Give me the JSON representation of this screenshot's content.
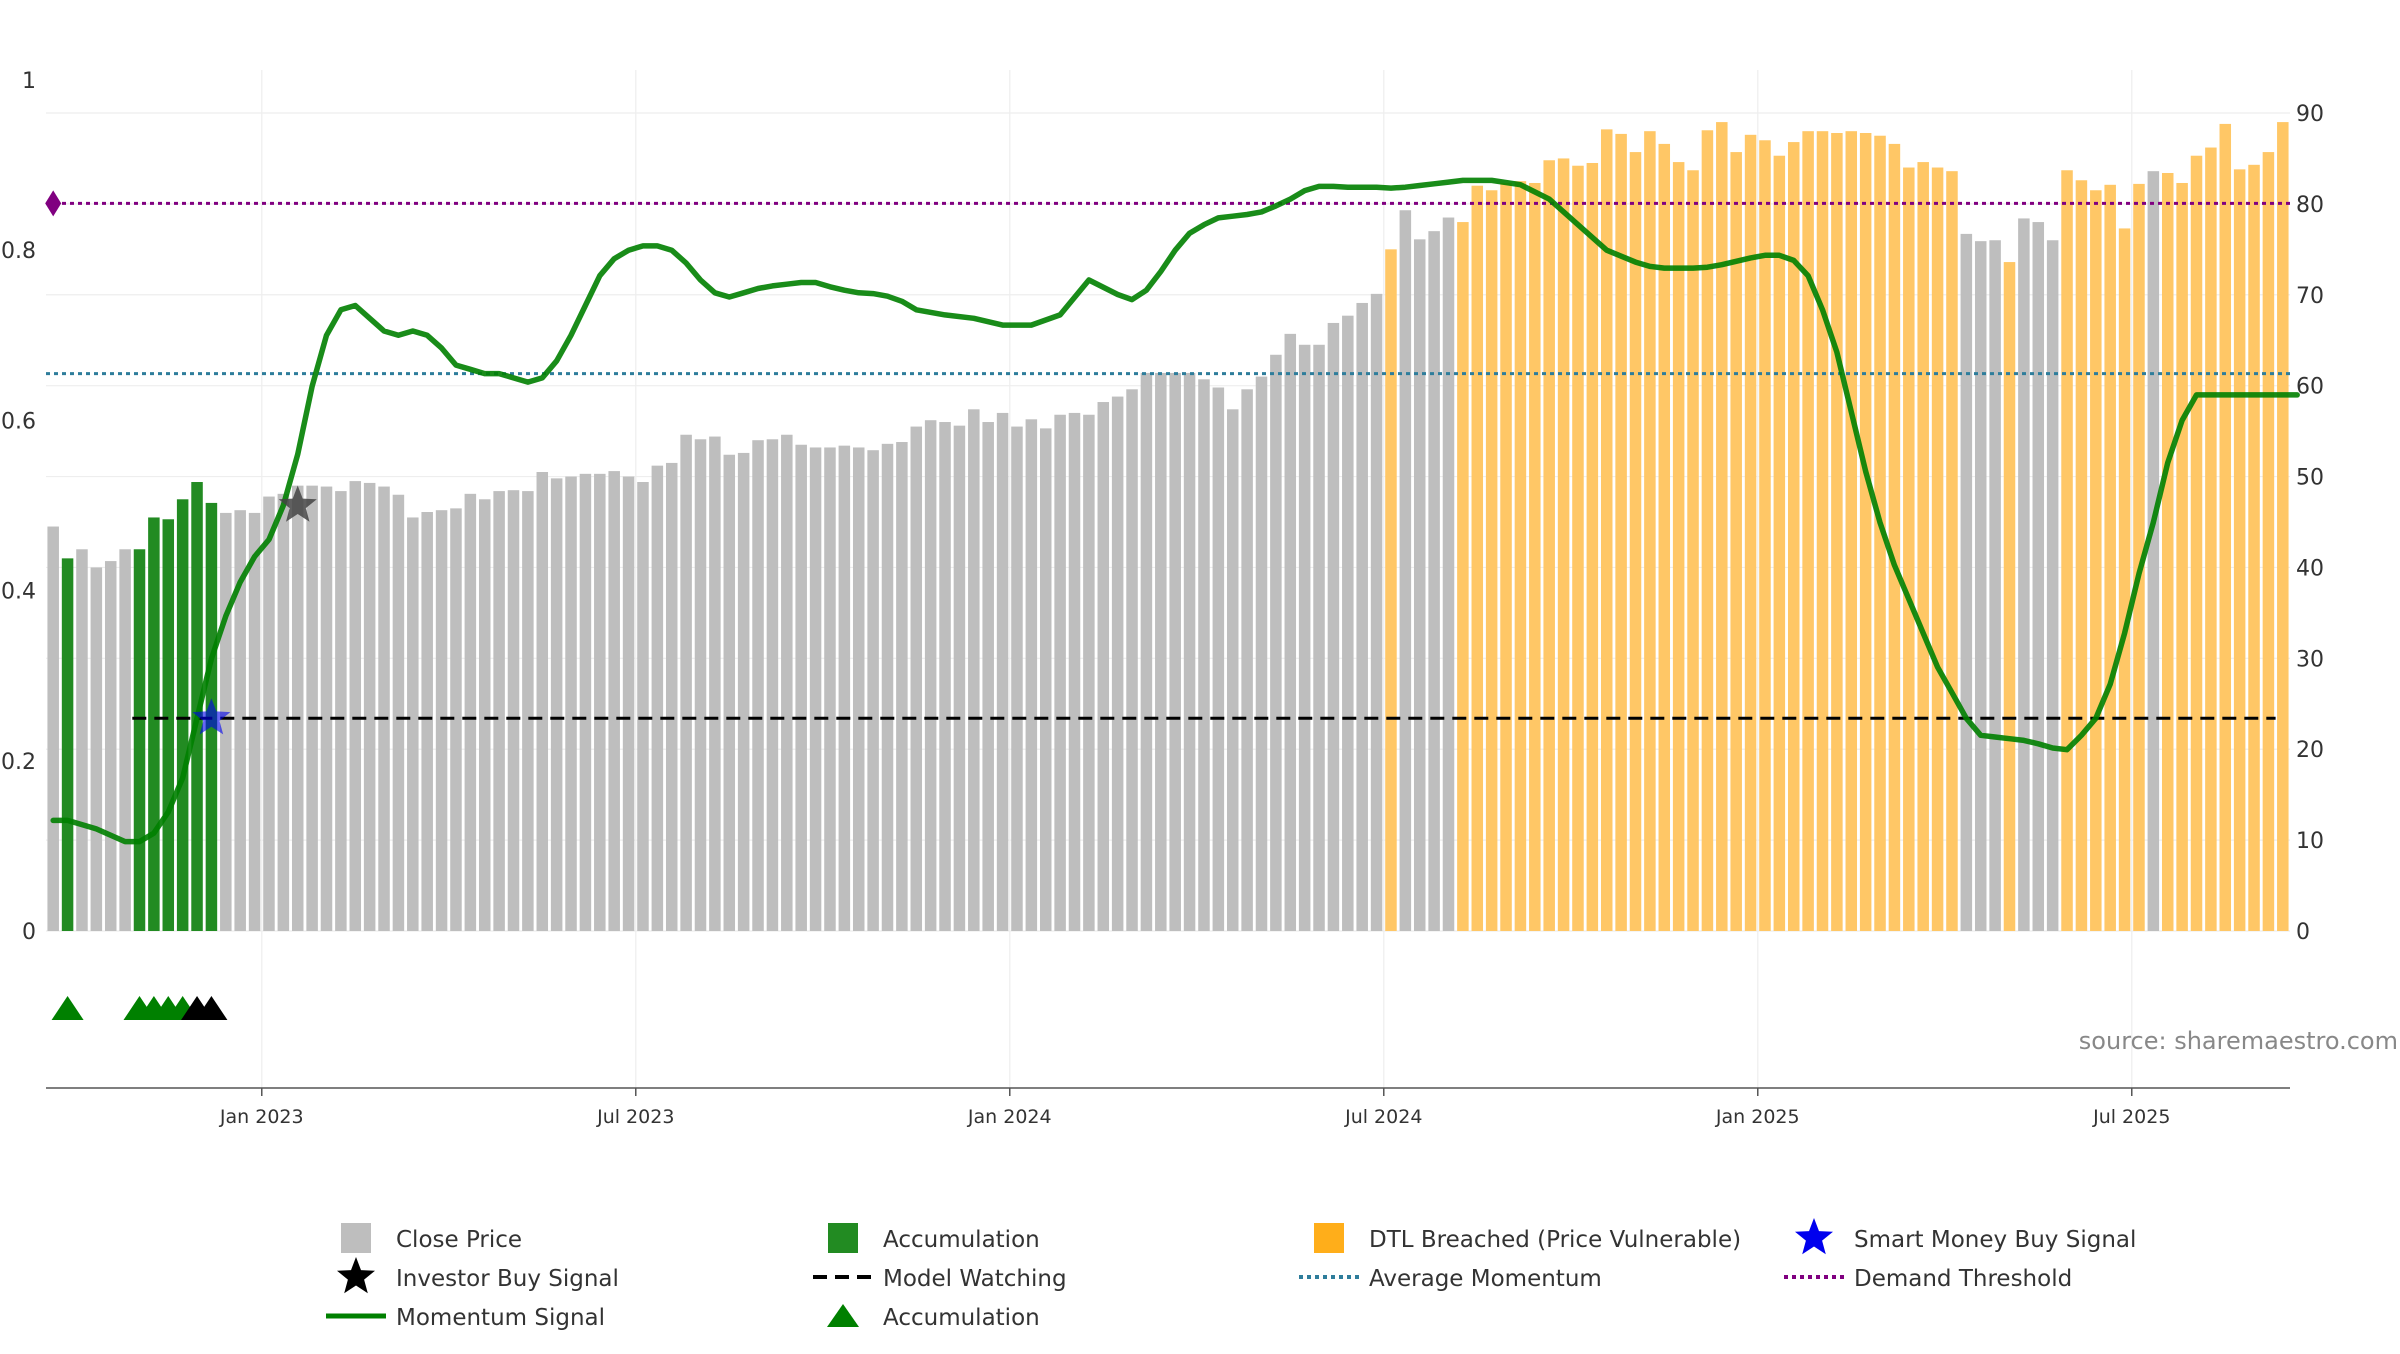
{
  "chart_data": {
    "type": "bar",
    "source": "source: sharemaestro.com",
    "ylim_left": [
      0,
      1
    ],
    "yticks_left": [
      "0",
      "0.2",
      "0.4",
      "0.6",
      "0.8",
      "1"
    ],
    "ylim_right": [
      0,
      90
    ],
    "yticks_right": [
      "0",
      "10",
      "20",
      "30",
      "40",
      "50",
      "60",
      "70",
      "80",
      "90"
    ],
    "x_range_weeks": [
      0,
      156
    ],
    "xticks": [
      {
        "label": "Jan 2023",
        "week": 15
      },
      {
        "label": "Jul 2023",
        "week": 41
      },
      {
        "label": "Jan 2024",
        "week": 67
      },
      {
        "label": "Jul 2024",
        "week": 93
      },
      {
        "label": "Jan 2025",
        "week": 119
      },
      {
        "label": "Jul 2025",
        "week": 145
      }
    ],
    "bar_series": {
      "name": "Close Price",
      "axis": "right",
      "values": [
        44.5,
        41,
        42,
        40,
        40.7,
        42,
        42,
        45.5,
        45.3,
        47.5,
        49.4,
        47.1,
        46,
        46.3,
        46,
        47.8,
        48.1,
        49,
        49,
        48.9,
        48.4,
        49.5,
        49.3,
        48.9,
        48,
        45.5,
        46.1,
        46.3,
        46.5,
        48.1,
        47.5,
        48.4,
        48.5,
        48.4,
        50.5,
        49.8,
        50,
        50.3,
        50.3,
        50.6,
        50,
        49.4,
        51.2,
        51.5,
        54.6,
        54.1,
        54.4,
        52.4,
        52.6,
        54,
        54.1,
        54.6,
        53.5,
        53.2,
        53.2,
        53.4,
        53.2,
        52.9,
        53.6,
        53.8,
        55.5,
        56.2,
        56,
        55.6,
        57.4,
        56,
        57,
        55.5,
        56.3,
        55.3,
        56.8,
        57,
        56.8,
        58.2,
        58.8,
        59.6,
        61.4,
        61.4,
        61.4,
        61.4,
        60.7,
        59.8,
        57.4,
        59.6,
        61,
        63.4,
        65.7,
        64.5,
        64.5,
        66.9,
        67.7,
        69.1,
        70.1,
        75,
        79.3,
        76.1,
        77,
        78.5,
        78,
        82,
        81.5,
        82.3,
        82.5,
        82.3,
        84.8,
        85,
        84.2,
        84.5,
        88.2,
        87.7,
        85.7,
        88,
        86.6,
        84.6,
        83.7,
        88.1,
        89,
        85.7,
        87.6,
        87,
        85.3,
        86.8,
        88,
        88,
        87.8,
        88,
        87.8,
        87.5,
        86.6,
        84,
        84.6,
        84,
        83.6,
        76.7,
        75.9,
        76,
        73.6,
        78.4,
        78,
        76,
        83.7,
        82.6,
        81.5,
        82.1,
        77.3,
        82.2,
        83.6,
        83.4,
        82.3,
        85.3,
        86.2,
        88.8,
        83.8,
        84.3,
        85.7,
        89
      ]
    },
    "bar_colors": {
      "Close Price": "#bebebe",
      "Accumulation": "#228b22",
      "DTL Breached (Price Vulnerable)": "#ffc766"
    },
    "accumulation_bar_weeks": [
      1,
      6,
      7,
      8,
      9,
      10,
      11
    ],
    "dtl_breached_weeks_ranges": [
      [
        93,
        93
      ],
      [
        98,
        132
      ],
      [
        136,
        136
      ],
      [
        140,
        145
      ],
      [
        147,
        156
      ]
    ],
    "momentum_signal": {
      "name": "Momentum Signal",
      "axis": "left",
      "color": "#008000",
      "weeks": [
        0,
        1,
        3,
        5,
        6,
        7,
        8,
        9,
        10,
        11,
        12,
        13,
        14,
        15,
        16,
        17,
        18,
        19,
        20,
        21,
        22,
        23,
        24,
        25,
        26,
        27,
        28,
        29,
        30,
        31,
        32,
        33,
        34,
        35,
        36,
        37,
        38,
        39,
        40,
        41,
        42,
        43,
        44,
        45,
        46,
        47,
        48,
        49,
        50,
        51,
        52,
        53,
        54,
        55,
        56,
        57,
        58,
        59,
        60,
        62,
        64,
        66,
        68,
        70,
        72,
        74,
        75,
        76,
        77,
        78,
        79,
        80,
        81,
        82,
        83,
        84,
        85,
        86,
        87,
        88,
        89,
        90,
        91,
        92,
        93,
        94,
        95,
        96,
        97,
        98,
        99,
        100,
        102,
        104,
        106,
        108,
        110,
        111,
        112,
        113,
        114,
        115,
        116,
        117,
        118,
        119,
        120,
        121,
        122,
        123,
        124,
        125,
        126,
        127,
        128,
        129,
        130,
        131,
        132,
        133,
        134,
        135,
        136,
        137,
        138,
        139,
        140,
        141,
        142,
        143,
        144,
        145,
        146,
        147,
        148,
        149,
        150,
        151,
        152,
        153,
        154,
        155,
        156
      ],
      "values": [
        0.13,
        0.13,
        0.12,
        0.105,
        0.105,
        0.115,
        0.14,
        0.18,
        0.25,
        0.32,
        0.37,
        0.41,
        0.44,
        0.46,
        0.5,
        0.56,
        0.64,
        0.7,
        0.73,
        0.735,
        0.72,
        0.705,
        0.7,
        0.705,
        0.7,
        0.685,
        0.665,
        0.66,
        0.655,
        0.655,
        0.65,
        0.645,
        0.65,
        0.67,
        0.7,
        0.735,
        0.77,
        0.79,
        0.8,
        0.805,
        0.805,
        0.8,
        0.785,
        0.765,
        0.75,
        0.745,
        0.75,
        0.755,
        0.758,
        0.76,
        0.762,
        0.762,
        0.757,
        0.753,
        0.75,
        0.749,
        0.746,
        0.74,
        0.73,
        0.724,
        0.72,
        0.712,
        0.712,
        0.724,
        0.765,
        0.748,
        0.742,
        0.753,
        0.775,
        0.8,
        0.82,
        0.83,
        0.838,
        0.84,
        0.842,
        0.845,
        0.852,
        0.86,
        0.87,
        0.875,
        0.875,
        0.874,
        0.874,
        0.874,
        0.873,
        0.874,
        0.876,
        0.878,
        0.88,
        0.882,
        0.882,
        0.882,
        0.877,
        0.86,
        0.83,
        0.8,
        0.786,
        0.781,
        0.779,
        0.779,
        0.779,
        0.78,
        0.783,
        0.787,
        0.791,
        0.794,
        0.794,
        0.788,
        0.77,
        0.73,
        0.68,
        0.61,
        0.54,
        0.48,
        0.43,
        0.39,
        0.35,
        0.31,
        0.28,
        0.25,
        0.23,
        0.228,
        0.226,
        0.224,
        0.22,
        0.215,
        0.213,
        0.23,
        0.25,
        0.29,
        0.35,
        0.42,
        0.48,
        0.55,
        0.6,
        0.63,
        0.63,
        0.63,
        0.63,
        0.63,
        0.63,
        0.63,
        0.63
      ]
    },
    "average_momentum": {
      "name": "Average Momentum",
      "axis": "left",
      "value": 0.655,
      "color": "#2e7d9b"
    },
    "demand_threshold": {
      "name": "Demand Threshold",
      "axis": "left",
      "value": 0.855,
      "color": "#800080"
    },
    "model_watching": {
      "name": "Model Watching",
      "axis": "left",
      "value": 0.25,
      "start_week": 6,
      "end_week": 155,
      "color": "#000000"
    },
    "investor_buy_signal": {
      "name": "Investor Buy Signal",
      "week": 17,
      "value": 0.5,
      "color": "#444444"
    },
    "smart_money_buy_signal": {
      "name": "Smart Money Buy Signal",
      "week": 11,
      "value": 0.25,
      "color": "#0000ee"
    },
    "demand_marker": {
      "week": 0.5,
      "value": 0.855,
      "color": "#800080"
    },
    "accumulation_triangles": [
      {
        "week": 1.5,
        "color": "#008000"
      },
      {
        "week": 6.5,
        "color": "#008000"
      },
      {
        "week": 7.5,
        "color": "#008000"
      },
      {
        "week": 8.5,
        "color": "#008000"
      },
      {
        "week": 9.5,
        "color": "#008000"
      },
      {
        "week": 10.5,
        "color": "#000000"
      },
      {
        "week": 11.5,
        "color": "#000000"
      }
    ],
    "legend": {
      "placement": "bottom",
      "items": [
        {
          "label": "Close Price",
          "symbol": "square",
          "color": "#bebebe"
        },
        {
          "label": "Accumulation",
          "symbol": "square",
          "color": "#228b22"
        },
        {
          "label": "DTL Breached (Price Vulnerable)",
          "symbol": "square",
          "color": "#ffae1a"
        },
        {
          "label": "Smart Money Buy Signal",
          "symbol": "star",
          "color": "#0000ee"
        },
        {
          "label": "Investor Buy Signal",
          "symbol": "star",
          "color": "#000000"
        },
        {
          "label": "Model Watching",
          "symbol": "dash",
          "color": "#000000"
        },
        {
          "label": "Average Momentum",
          "symbol": "dot",
          "color": "#2e7d9b"
        },
        {
          "label": "Demand Threshold",
          "symbol": "dot",
          "color": "#800080"
        },
        {
          "label": "Momentum Signal",
          "symbol": "line",
          "color": "#008000"
        },
        {
          "label": "Accumulation",
          "symbol": "triangle",
          "color": "#008000"
        }
      ]
    }
  }
}
